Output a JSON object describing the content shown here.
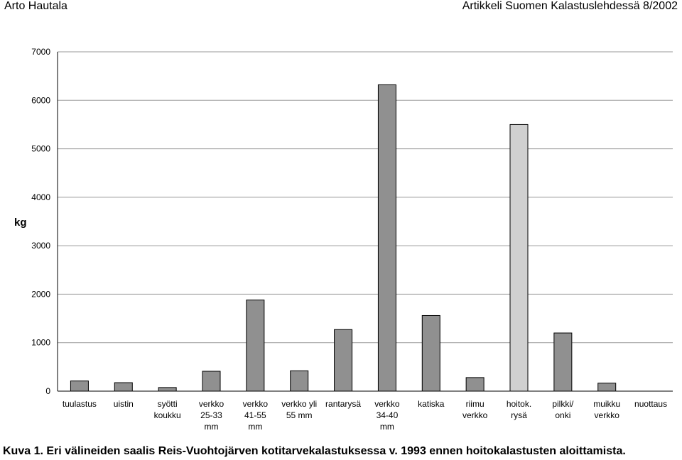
{
  "header": {
    "author": "Arto Hautala",
    "source": "Artikkeli Suomen Kalastuslehdessä 8/2002"
  },
  "caption": "Kuva 1. Eri välineiden saalis Reis-Vuohtojärven kotitarvekalastuksessa v. 1993 ennen hoitokalastusten aloittamista.",
  "chart_data": {
    "type": "bar",
    "ylabel": "kg",
    "xlabel": "",
    "ylim": [
      0,
      7000
    ],
    "yticks": [
      "0",
      "1000",
      "2000",
      "3000",
      "4000",
      "5000",
      "6000",
      "7000"
    ],
    "grid": true,
    "categories": [
      [
        "tuulastus"
      ],
      [
        "uistin"
      ],
      [
        "syötti",
        "koukku"
      ],
      [
        "verkko",
        "25-33",
        "mm"
      ],
      [
        "verkko",
        "41-55",
        "mm"
      ],
      [
        "verkko yli",
        "55 mm"
      ],
      [
        "rantarysä"
      ],
      [
        "verkko",
        "34-40",
        "mm"
      ],
      [
        "katiska"
      ],
      [
        "riimu",
        "verkko"
      ],
      [
        "hoitok.",
        "rysä"
      ],
      [
        "pilkki/",
        "onki"
      ],
      [
        "muikku",
        "verkko"
      ],
      [
        "nuottaus"
      ]
    ],
    "values": [
      210,
      175,
      75,
      410,
      1880,
      420,
      1270,
      6320,
      1560,
      280,
      5500,
      1200,
      165,
      0
    ],
    "bar_colors": [
      "#909090",
      "#909090",
      "#909090",
      "#909090",
      "#909090",
      "#909090",
      "#909090",
      "#909090",
      "#909090",
      "#909090",
      "#d0d0d0",
      "#909090",
      "#909090",
      "#909090"
    ]
  }
}
